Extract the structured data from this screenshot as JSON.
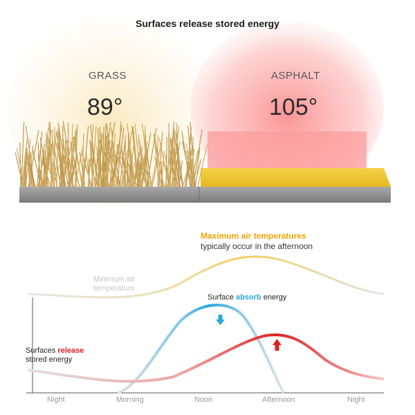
{
  "title": "Surfaces release stored energy",
  "grass": {
    "label": "GRASS",
    "temperature": "89°"
  },
  "asphalt": {
    "label": "ASPHALT",
    "temperature": "105°"
  },
  "chart": {
    "max_title": "Maximum air temperatures",
    "max_subtitle": "typically occur in the afternoon",
    "min_label_line1": "Minimum air",
    "min_label_line2": "temperature",
    "absorb_prefix": "Surface ",
    "absorb_highlight": "absorb",
    "absorb_suffix": " energy",
    "release_prefix": "Surfaces ",
    "release_highlight": "release",
    "release_line2": "stored energy",
    "x_ticks": [
      "Night",
      "Morning",
      "Noon",
      "Afternoon",
      "Night"
    ]
  },
  "colors": {
    "air_temperature": "#f2cf60",
    "absorb": "#29a7dc",
    "release": "#e02020",
    "max_title": "#f0a500"
  }
}
